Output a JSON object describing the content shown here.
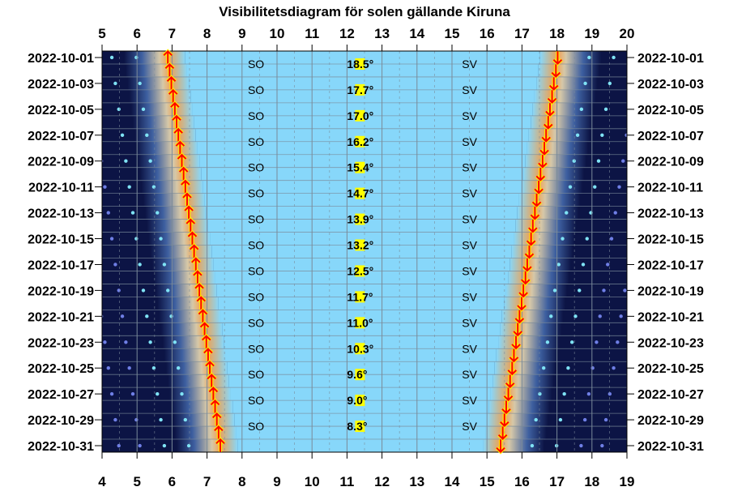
{
  "chart_data": {
    "type": "visibility-diagram",
    "title": "Visibilitetsdiagram för solen gällande Kiruna",
    "top_axis_ticks": [
      "5",
      "6",
      "7",
      "8",
      "9",
      "10",
      "11",
      "12",
      "13",
      "14",
      "15",
      "16",
      "17",
      "18",
      "19",
      "20"
    ],
    "top_axis_range": [
      5,
      20
    ],
    "bottom_axis_ticks": [
      "4",
      "5",
      "6",
      "7",
      "8",
      "9",
      "10",
      "11",
      "12",
      "13",
      "14",
      "15",
      "16",
      "17",
      "18",
      "19"
    ],
    "bottom_axis_range": [
      4,
      19
    ],
    "days": [
      "2022-10-01",
      "2022-10-02",
      "2022-10-03",
      "2022-10-04",
      "2022-10-05",
      "2022-10-06",
      "2022-10-07",
      "2022-10-08",
      "2022-10-09",
      "2022-10-10",
      "2022-10-11",
      "2022-10-12",
      "2022-10-13",
      "2022-10-14",
      "2022-10-15",
      "2022-10-16",
      "2022-10-17",
      "2022-10-18",
      "2022-10-19",
      "2022-10-20",
      "2022-10-21",
      "2022-10-22",
      "2022-10-23",
      "2022-10-24",
      "2022-10-25",
      "2022-10-26",
      "2022-10-27",
      "2022-10-28",
      "2022-10-29",
      "2022-10-30",
      "2022-10-31"
    ],
    "date_labels": [
      "2022-10-01",
      "2022-10-03",
      "2022-10-05",
      "2022-10-07",
      "2022-10-09",
      "2022-10-11",
      "2022-10-13",
      "2022-10-15",
      "2022-10-17",
      "2022-10-19",
      "2022-10-21",
      "2022-10-23",
      "2022-10-25",
      "2022-10-27",
      "2022-10-29",
      "2022-10-31"
    ],
    "sunrise_top_hours": [
      6.88,
      6.93,
      6.98,
      7.03,
      7.08,
      7.13,
      7.18,
      7.23,
      7.28,
      7.33,
      7.38,
      7.43,
      7.48,
      7.53,
      7.58,
      7.63,
      7.68,
      7.73,
      7.78,
      7.83,
      7.88,
      7.93,
      7.98,
      8.03,
      8.08,
      8.13,
      8.18,
      8.23,
      8.28,
      8.33,
      8.38
    ],
    "sunset_top_hours": [
      18.02,
      17.97,
      17.91,
      17.86,
      17.8,
      17.75,
      17.69,
      17.64,
      17.59,
      17.53,
      17.48,
      17.42,
      17.37,
      17.31,
      17.26,
      17.21,
      17.15,
      17.1,
      17.04,
      16.99,
      16.93,
      16.88,
      16.83,
      16.77,
      16.72,
      16.66,
      16.61,
      16.55,
      16.5,
      16.45,
      16.39
    ],
    "rows": [
      {
        "rise_dir": "SO",
        "elevation": "18.5°",
        "set_dir": "SV"
      },
      {
        "rise_dir": "SO",
        "elevation": "17.7°",
        "set_dir": "SV"
      },
      {
        "rise_dir": "SO",
        "elevation": "17.0°",
        "set_dir": "SV"
      },
      {
        "rise_dir": "SO",
        "elevation": "16.2°",
        "set_dir": "SV"
      },
      {
        "rise_dir": "SO",
        "elevation": "15.4°",
        "set_dir": "SV"
      },
      {
        "rise_dir": "SO",
        "elevation": "14.7°",
        "set_dir": "SV"
      },
      {
        "rise_dir": "SO",
        "elevation": "13.9°",
        "set_dir": "SV"
      },
      {
        "rise_dir": "SO",
        "elevation": "13.2°",
        "set_dir": "SV"
      },
      {
        "rise_dir": "SO",
        "elevation": "12.5°",
        "set_dir": "SV"
      },
      {
        "rise_dir": "SO",
        "elevation": "11.7°",
        "set_dir": "SV"
      },
      {
        "rise_dir": "SO",
        "elevation": "11.0°",
        "set_dir": "SV"
      },
      {
        "rise_dir": "SO",
        "elevation": "10.3°",
        "set_dir": "SV"
      },
      {
        "rise_dir": "SO",
        "elevation": "9.6°",
        "set_dir": "SV"
      },
      {
        "rise_dir": "SO",
        "elevation": "9.0°",
        "set_dir": "SV"
      },
      {
        "rise_dir": "SO",
        "elevation": "8.3°",
        "set_dir": "SV"
      }
    ],
    "colors": {
      "day": "#87d7fa",
      "twilight": "#f3a04c",
      "night": "#0c1445",
      "arrow": "#ff0000",
      "arrow_outline": "#ffee00",
      "elevation_highlight": "#ffff00",
      "grid": "#7a8a99"
    }
  }
}
